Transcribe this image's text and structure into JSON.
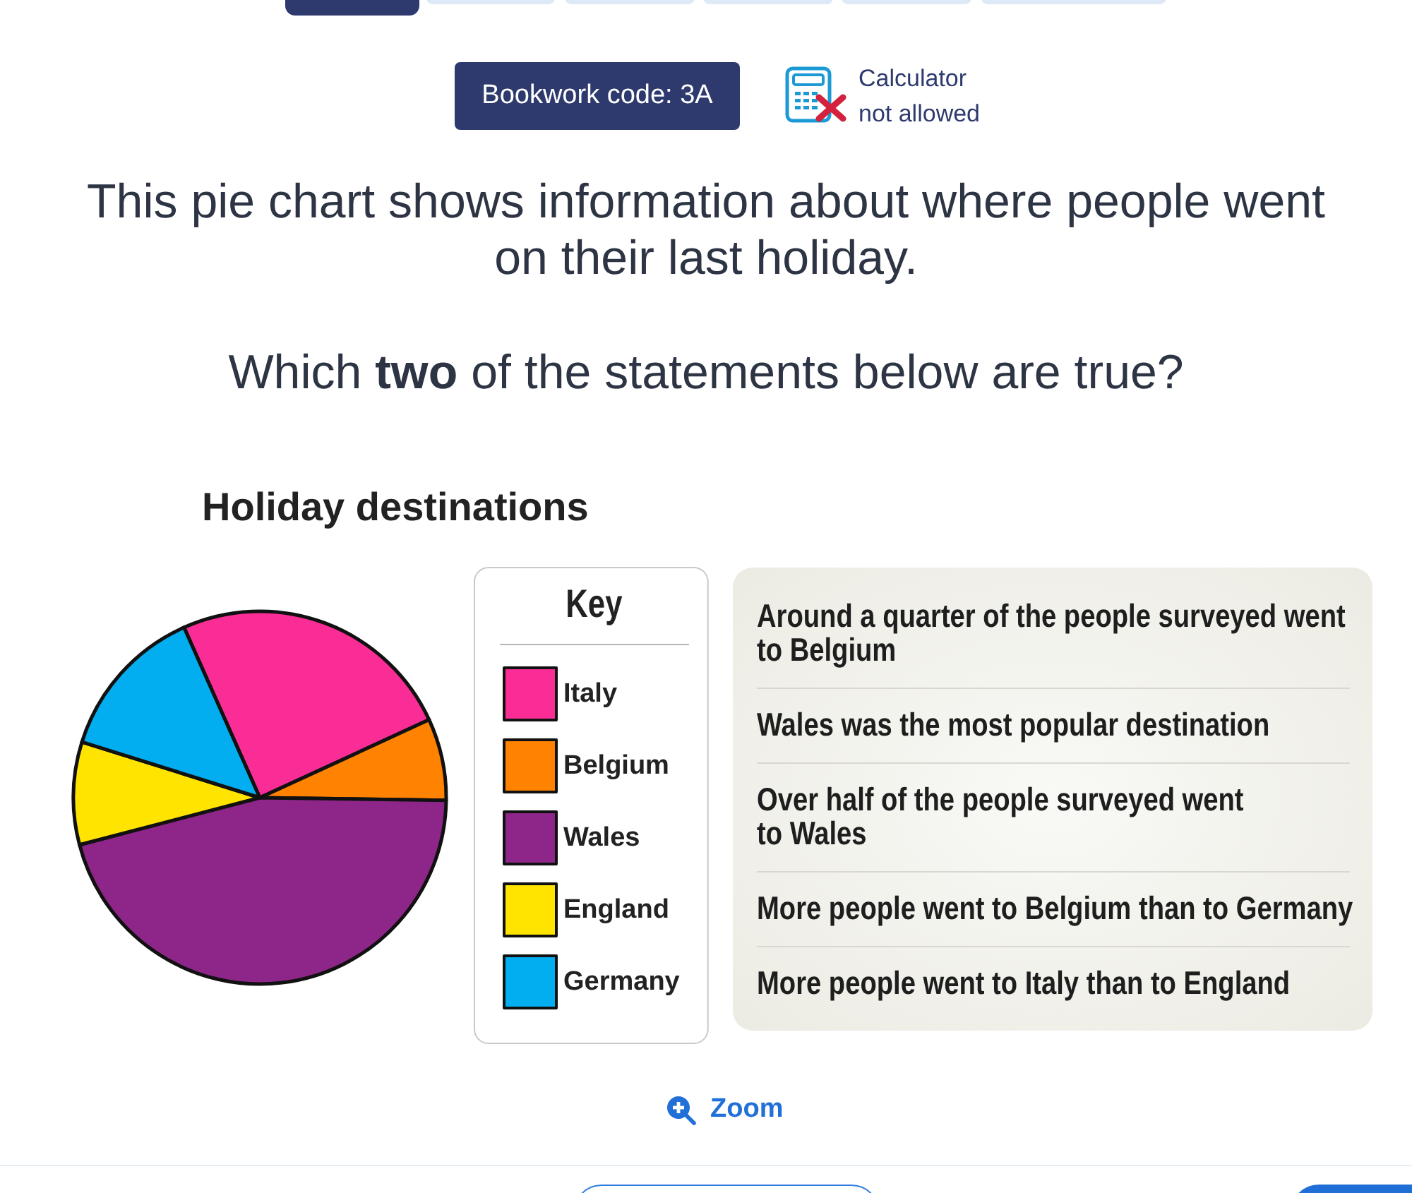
{
  "chart_data": {
    "type": "pie",
    "title": "Holiday destinations",
    "legend_title": "Key",
    "legend": "right",
    "categories": [
      "Italy",
      "Belgium",
      "Wales",
      "England",
      "Germany"
    ],
    "values": [
      24.8,
      7.1,
      45.7,
      8.9,
      13.5
    ],
    "colors": [
      "#fa2d96",
      "#ff8300",
      "#8e2589",
      "#ffe400",
      "#02aeef"
    ],
    "annotations": [
      "Bookwork code: 3A",
      "Calculator not allowed",
      "This pie chart shows information about where people went on their last holiday.",
      "Which two of the statements below are true?",
      "Around a quarter of the people surveyed went\nto Belgium",
      "Wales was the most popular destination",
      "Over half of the people surveyed went\nto Wales",
      "More people went to Belgium than to Germany",
      "More people went to Italy than to England",
      "Zoom"
    ]
  }
}
